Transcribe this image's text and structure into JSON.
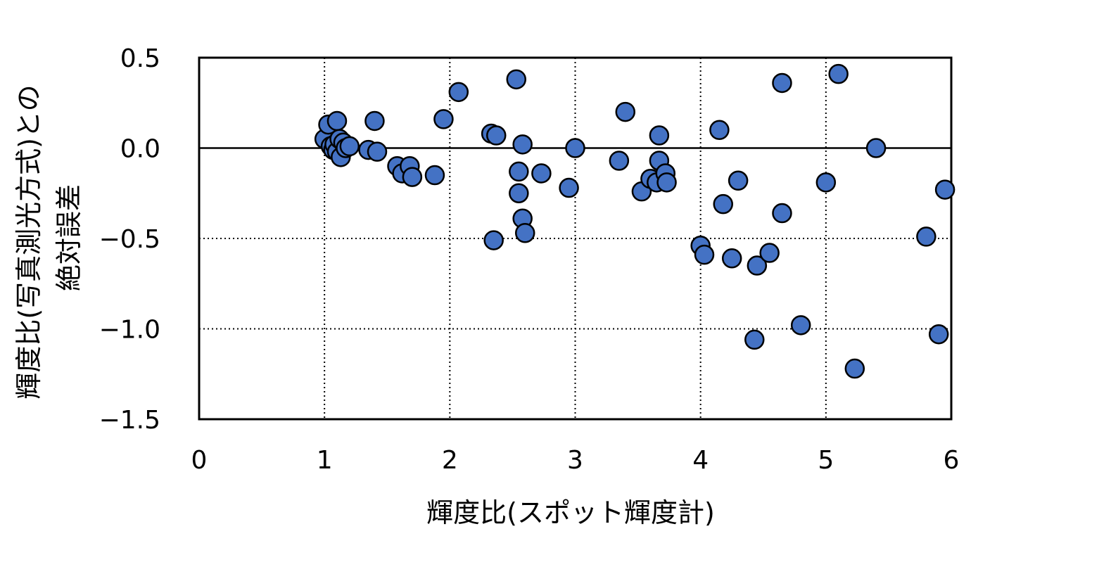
{
  "chart_data": {
    "type": "scatter",
    "xlabel": "輝度比(スポット輝度計)",
    "ylabel_lines": [
      "輝度比(写真測光方式)との",
      "絶対誤差"
    ],
    "xlim": [
      0,
      6
    ],
    "ylim": [
      -1.5,
      0.5
    ],
    "x_ticks": [
      0,
      1,
      2,
      3,
      4,
      5,
      6
    ],
    "y_ticks": [
      0.5,
      0.0,
      -0.5,
      -1.0,
      -1.5
    ],
    "x_tick_labels": [
      "0",
      "1",
      "2",
      "3",
      "4",
      "5",
      "6"
    ],
    "y_tick_labels": [
      "0.5",
      "0.0",
      "−0.5",
      "−1.0",
      "−1.5"
    ],
    "grid": "dotted",
    "zero_line": true,
    "marker_color": "#4472C4",
    "marker_edge_color": "#000000",
    "points": [
      [
        1.0,
        0.05
      ],
      [
        1.03,
        0.13
      ],
      [
        1.05,
        0.01
      ],
      [
        1.07,
        -0.01
      ],
      [
        1.08,
        0.02
      ],
      [
        1.1,
        0.15
      ],
      [
        1.1,
        -0.02
      ],
      [
        1.12,
        0.05
      ],
      [
        1.13,
        -0.05
      ],
      [
        1.15,
        0.03
      ],
      [
        1.17,
        0.0
      ],
      [
        1.2,
        0.01
      ],
      [
        1.35,
        -0.01
      ],
      [
        1.4,
        0.15
      ],
      [
        1.42,
        -0.02
      ],
      [
        1.58,
        -0.1
      ],
      [
        1.62,
        -0.14
      ],
      [
        1.68,
        -0.1
      ],
      [
        1.7,
        -0.16
      ],
      [
        1.88,
        -0.15
      ],
      [
        1.95,
        0.16
      ],
      [
        2.07,
        0.31
      ],
      [
        2.33,
        0.08
      ],
      [
        2.37,
        0.07
      ],
      [
        2.35,
        -0.51
      ],
      [
        2.53,
        0.38
      ],
      [
        2.55,
        -0.13
      ],
      [
        2.55,
        -0.25
      ],
      [
        2.58,
        0.02
      ],
      [
        2.58,
        -0.39
      ],
      [
        2.6,
        -0.47
      ],
      [
        2.73,
        -0.14
      ],
      [
        2.95,
        -0.22
      ],
      [
        3.0,
        0.0
      ],
      [
        3.35,
        -0.07
      ],
      [
        3.4,
        0.2
      ],
      [
        3.53,
        -0.24
      ],
      [
        3.6,
        -0.17
      ],
      [
        3.65,
        -0.19
      ],
      [
        3.67,
        0.07
      ],
      [
        3.67,
        -0.07
      ],
      [
        3.72,
        -0.14
      ],
      [
        3.73,
        -0.19
      ],
      [
        4.0,
        -0.54
      ],
      [
        4.03,
        -0.59
      ],
      [
        4.15,
        0.1
      ],
      [
        4.18,
        -0.31
      ],
      [
        4.25,
        -0.61
      ],
      [
        4.3,
        -0.18
      ],
      [
        4.43,
        -1.06
      ],
      [
        4.45,
        -0.65
      ],
      [
        4.55,
        -0.58
      ],
      [
        4.65,
        0.36
      ],
      [
        4.65,
        -0.36
      ],
      [
        4.8,
        -0.98
      ],
      [
        5.0,
        -0.19
      ],
      [
        5.1,
        0.41
      ],
      [
        5.23,
        -1.22
      ],
      [
        5.4,
        0.0
      ],
      [
        5.8,
        -0.49
      ],
      [
        5.9,
        -1.03
      ],
      [
        5.95,
        -0.23
      ]
    ]
  }
}
